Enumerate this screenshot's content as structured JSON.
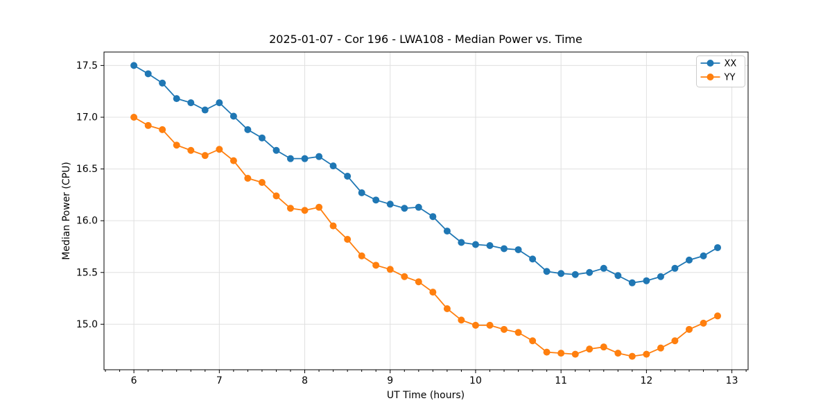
{
  "chart_data": {
    "type": "line",
    "title": "2025-01-07 - Cor 196 - LWA108 - Median Power vs. Time",
    "xlabel": "UT Time (hours)",
    "ylabel": "Median Power (CPU)",
    "x": [
      6.0,
      6.167,
      6.333,
      6.5,
      6.667,
      6.833,
      7.0,
      7.167,
      7.333,
      7.5,
      7.667,
      7.833,
      8.0,
      8.167,
      8.333,
      8.5,
      8.667,
      8.833,
      9.0,
      9.167,
      9.333,
      9.5,
      9.667,
      9.833,
      10.0,
      10.167,
      10.333,
      10.5,
      10.667,
      10.833,
      11.0,
      11.167,
      11.333,
      11.5,
      11.667,
      11.833,
      12.0,
      12.167,
      12.333,
      12.5,
      12.667,
      12.833
    ],
    "series": [
      {
        "name": "XX",
        "color": "#1f77b4",
        "values": [
          17.5,
          17.42,
          17.33,
          17.18,
          17.14,
          17.07,
          17.14,
          17.01,
          16.88,
          16.8,
          16.68,
          16.6,
          16.6,
          16.62,
          16.53,
          16.43,
          16.27,
          16.2,
          16.16,
          16.12,
          16.13,
          16.04,
          15.9,
          15.79,
          15.77,
          15.76,
          15.73,
          15.72,
          15.63,
          15.51,
          15.49,
          15.48,
          15.5,
          15.54,
          15.47,
          15.4,
          15.42,
          15.46,
          15.54,
          15.62,
          15.66,
          15.74
        ]
      },
      {
        "name": "YY",
        "color": "#ff7f0e",
        "values": [
          17.0,
          16.92,
          16.88,
          16.73,
          16.68,
          16.63,
          16.69,
          16.58,
          16.41,
          16.37,
          16.24,
          16.12,
          16.1,
          16.13,
          15.95,
          15.82,
          15.66,
          15.57,
          15.53,
          15.46,
          15.41,
          15.31,
          15.15,
          15.04,
          14.99,
          14.99,
          14.95,
          14.92,
          14.84,
          14.73,
          14.72,
          14.71,
          14.76,
          14.78,
          14.72,
          14.69,
          14.71,
          14.77,
          14.84,
          14.95,
          15.01,
          15.08
        ]
      }
    ],
    "xlim": [
      5.65,
      13.19
    ],
    "ylim": [
      14.56,
      17.63
    ],
    "xticks": [
      6,
      7,
      8,
      9,
      10,
      11,
      12,
      13
    ],
    "yticks": [
      15.0,
      15.5,
      16.0,
      16.5,
      17.0,
      17.5
    ],
    "x_minor_tick_step": 0.1667,
    "grid": true,
    "legend": {
      "position": "upper right"
    }
  }
}
